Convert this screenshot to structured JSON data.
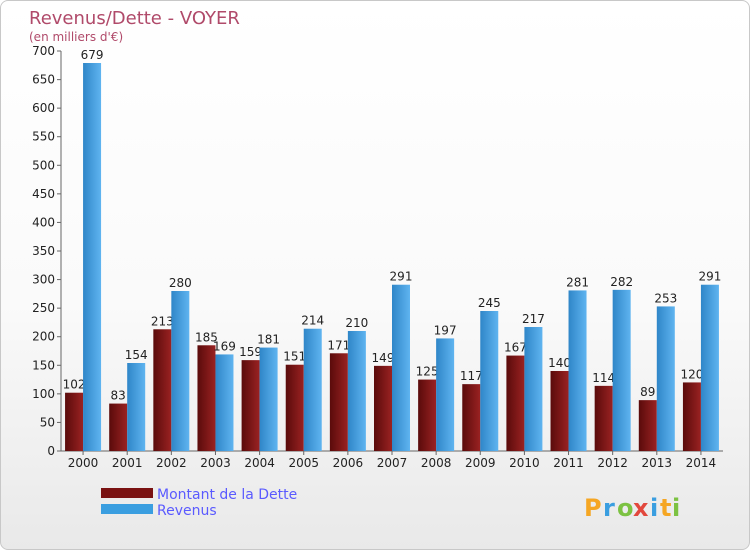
{
  "chart_data": {
    "type": "bar",
    "title": "Revenus/Dette - VOYER",
    "subtitle": "(en milliers d'€)",
    "categories": [
      "2000",
      "2001",
      "2002",
      "2003",
      "2004",
      "2005",
      "2006",
      "2007",
      "2008",
      "2009",
      "2010",
      "2011",
      "2012",
      "2013",
      "2014"
    ],
    "series": [
      {
        "name": "Montant de la Dette",
        "color": "#7a1212",
        "values": [
          102,
          83,
          213,
          185,
          159,
          151,
          171,
          149,
          125,
          117,
          167,
          140,
          114,
          89,
          120
        ],
        "labels": [
          "102",
          "83",
          "213",
          "185",
          "159",
          "151",
          "171",
          "149",
          "125",
          "117",
          "167",
          "140",
          "114",
          "89",
          "120"
        ]
      },
      {
        "name": "Revenus",
        "color": "#3a9ee0",
        "values": [
          679,
          154,
          280,
          169,
          181,
          214,
          210,
          291,
          197,
          245,
          217,
          281,
          282,
          253,
          291
        ],
        "labels": [
          "679",
          "154",
          "280",
          "169",
          "181",
          "214",
          "210",
          "291",
          "197",
          "245",
          "217",
          "281",
          "282",
          "253",
          "291"
        ]
      }
    ],
    "yticks": [
      "0",
      "50",
      "100",
      "150",
      "200",
      "250",
      "300",
      "350",
      "400",
      "450",
      "500",
      "550",
      "600",
      "650",
      "700"
    ],
    "ylim": [
      0,
      700
    ],
    "grid": false,
    "legend": "bottom-left"
  },
  "logo": {
    "text": "Proxiti",
    "letters": [
      "P",
      "r",
      "o",
      "x",
      "i",
      "t",
      "i"
    ],
    "colors": [
      "#f5a623",
      "#3a9ee0",
      "#7cc242",
      "#e2483d",
      "#3a9ee0",
      "#f5a623",
      "#7cc242"
    ]
  }
}
